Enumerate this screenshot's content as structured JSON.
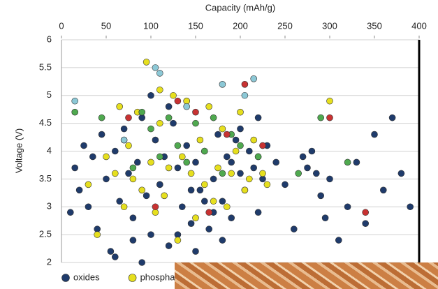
{
  "chart_data": {
    "type": "scatter",
    "x_label": "Capacity (mAh/g)",
    "y_label": "Voltage (V)",
    "xlim": [
      0,
      400
    ],
    "xticks": [
      0,
      50,
      100,
      150,
      200,
      250,
      300,
      350,
      400
    ],
    "ylim": [
      2,
      6
    ],
    "yticks": [
      2,
      2.5,
      3,
      3.5,
      4,
      4.5,
      5,
      5.5,
      6
    ],
    "grid": true,
    "legend": "bottom",
    "series": [
      {
        "name": "oxides",
        "color": "#1f3b6b",
        "x": [
          10,
          15,
          20,
          25,
          30,
          35,
          40,
          45,
          50,
          55,
          60,
          65,
          70,
          75,
          80,
          85,
          90,
          95,
          100,
          105,
          110,
          115,
          120,
          125,
          130,
          135,
          140,
          145,
          150,
          155,
          160,
          165,
          170,
          175,
          180,
          185,
          190,
          195,
          200,
          205,
          210,
          215,
          220,
          225,
          230,
          240,
          250,
          260,
          270,
          275,
          280,
          285,
          290,
          295,
          300,
          310,
          320,
          330,
          340,
          350,
          360,
          370,
          380,
          390,
          60,
          80,
          100,
          120,
          140,
          150,
          160,
          180,
          200,
          220,
          90,
          110,
          130,
          145,
          170,
          190
        ],
        "y": [
          2.9,
          3.7,
          3.3,
          4.1,
          3.0,
          3.9,
          2.6,
          4.3,
          3.5,
          2.2,
          4.0,
          3.1,
          4.4,
          3.6,
          2.8,
          3.8,
          4.6,
          3.2,
          2.5,
          4.2,
          3.4,
          3.9,
          2.3,
          4.5,
          3.7,
          3.0,
          4.1,
          2.7,
          3.8,
          3.3,
          4.0,
          2.6,
          3.5,
          4.3,
          3.1,
          3.9,
          2.8,
          4.2,
          3.6,
          3.3,
          4.0,
          3.7,
          2.9,
          3.5,
          4.1,
          3.8,
          3.4,
          2.6,
          3.9,
          3.7,
          4.0,
          3.6,
          3.2,
          2.8,
          3.5,
          2.4,
          3.0,
          3.8,
          2.7,
          4.3,
          3.3,
          4.6,
          3.6,
          3.0,
          2.1,
          2.4,
          5.0,
          4.8,
          4.9,
          2.2,
          3.1,
          2.4,
          4.4,
          4.6,
          2.0,
          3.4,
          2.5,
          3.3,
          2.9,
          3.8
        ]
      },
      {
        "name": "phospha",
        "color": "#e6df1e",
        "x": [
          30,
          40,
          50,
          60,
          65,
          70,
          75,
          80,
          85,
          90,
          95,
          100,
          105,
          110,
          115,
          120,
          125,
          130,
          135,
          140,
          145,
          150,
          155,
          160,
          165,
          170,
          175,
          180,
          185,
          190,
          195,
          200,
          205,
          210,
          215,
          220,
          225,
          230,
          110,
          300
        ],
        "y": [
          3.4,
          2.5,
          3.9,
          3.6,
          4.8,
          3.0,
          4.1,
          3.5,
          4.7,
          3.3,
          5.6,
          3.8,
          2.9,
          4.5,
          3.2,
          3.7,
          5.0,
          2.4,
          3.9,
          4.9,
          3.6,
          2.8,
          4.2,
          3.4,
          4.8,
          3.1,
          3.7,
          4.4,
          3.0,
          3.6,
          4.0,
          4.7,
          3.3,
          3.5,
          4.2,
          3.9,
          3.6,
          3.4,
          5.1,
          4.9
        ]
      },
      {
        "color": "#4fa94f",
        "x": [
          15,
          45,
          70,
          80,
          90,
          100,
          110,
          120,
          130,
          140,
          150,
          160,
          170,
          180,
          190,
          200,
          220,
          265,
          290,
          320
        ],
        "y": [
          4.7,
          4.6,
          4.2,
          3.7,
          4.7,
          4.4,
          3.9,
          4.6,
          4.1,
          3.8,
          4.5,
          4.0,
          4.6,
          3.6,
          4.3,
          4.1,
          3.9,
          3.6,
          4.6,
          3.8
        ]
      },
      {
        "color": "#c83232",
        "x": [
          75,
          105,
          130,
          150,
          165,
          185,
          205,
          225,
          300,
          340
        ],
        "y": [
          4.6,
          3.0,
          4.9,
          4.7,
          2.9,
          4.3,
          5.2,
          4.1,
          4.6,
          2.9
        ]
      },
      {
        "color": "#8cc8d6",
        "x": [
          15,
          70,
          105,
          110,
          140,
          180,
          205,
          215
        ],
        "y": [
          4.9,
          4.2,
          5.5,
          5.4,
          4.8,
          5.2,
          5.0,
          5.3
        ]
      }
    ]
  }
}
